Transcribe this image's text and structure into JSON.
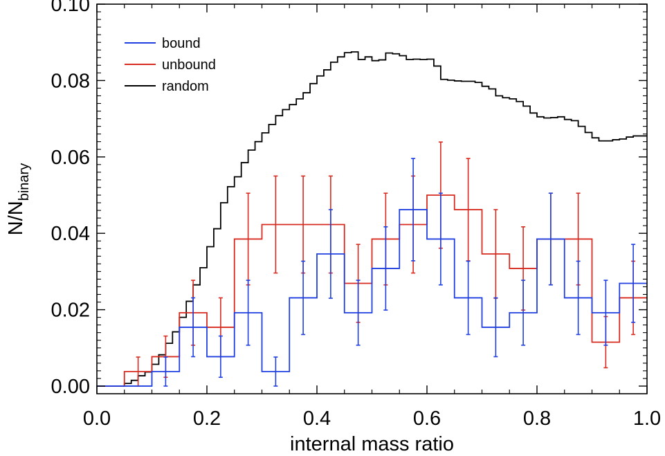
{
  "chart_data": {
    "type": "line",
    "style": "step-histogram-with-errorbars",
    "xlabel": "internal mass ratio",
    "ylabel": "N/N",
    "ylabel_subscript": "binary",
    "xlim": [
      0.0,
      1.0
    ],
    "ylim": [
      -0.002,
      0.1
    ],
    "xticks": [
      0.0,
      0.2,
      0.4,
      0.6,
      0.8,
      1.0
    ],
    "xtick_labels": [
      "0.0",
      "0.2",
      "0.4",
      "0.6",
      "0.8",
      "1.0"
    ],
    "yticks": [
      0.0,
      0.02,
      0.04,
      0.06,
      0.08,
      0.1
    ],
    "ytick_labels": [
      "0.00",
      "0.02",
      "0.04",
      "0.06",
      "0.08",
      "0.10"
    ],
    "legend": {
      "position": "top-left",
      "entries": [
        {
          "label": "bound",
          "color": "#1f3fe0"
        },
        {
          "label": "unbound",
          "color": "#d82a1e"
        },
        {
          "label": "random",
          "color": "#000000"
        }
      ]
    },
    "series": [
      {
        "name": "random",
        "color": "#000000",
        "bin_width": 0.0125,
        "bin_start": 0.0,
        "values": [
          0.0,
          0.0,
          0.0,
          0.0,
          0.0007,
          0.0015,
          0.0027,
          0.0037,
          0.0057,
          0.0082,
          0.0112,
          0.0142,
          0.018,
          0.0222,
          0.0265,
          0.031,
          0.0365,
          0.0412,
          0.048,
          0.0522,
          0.0548,
          0.0585,
          0.0618,
          0.064,
          0.0663,
          0.0685,
          0.0708,
          0.0724,
          0.0737,
          0.0752,
          0.0768,
          0.0792,
          0.0812,
          0.0828,
          0.0848,
          0.0862,
          0.0873,
          0.0875,
          0.0855,
          0.0862,
          0.0852,
          0.0854,
          0.0872,
          0.087,
          0.0865,
          0.0855,
          0.0856,
          0.0855,
          0.0856,
          0.0838,
          0.0803,
          0.0801,
          0.0799,
          0.0798,
          0.0798,
          0.0795,
          0.0785,
          0.0778,
          0.076,
          0.0755,
          0.0752,
          0.0745,
          0.0733,
          0.0715,
          0.0705,
          0.0702,
          0.0703,
          0.0705,
          0.0698,
          0.0695,
          0.068,
          0.0664,
          0.065,
          0.0642,
          0.0642,
          0.0645,
          0.0647,
          0.0652,
          0.0655,
          0.0655
        ]
      },
      {
        "name": "unbound",
        "color": "#d82a1e",
        "bin_width": 0.05,
        "bin_start": 0.0,
        "values": [
          0.0,
          0.0038,
          0.0077,
          0.0192,
          0.0154,
          0.0385,
          0.0423,
          0.0423,
          0.0423,
          0.0269,
          0.0385,
          0.0423,
          0.05,
          0.0462,
          0.0346,
          0.0308,
          0.0385,
          0.0385,
          0.0115,
          0.0231
        ],
        "errors": [
          0.0,
          0.0038,
          0.0054,
          0.0085,
          0.0077,
          0.012,
          0.0127,
          0.0127,
          0.0127,
          0.0102,
          0.012,
          0.0127,
          0.0139,
          0.0134,
          0.0116,
          0.0109,
          0.012,
          0.012,
          0.0067,
          0.0096
        ]
      },
      {
        "name": "bound",
        "color": "#1f3fe0",
        "bin_width": 0.05,
        "bin_start": 0.0,
        "values": [
          0.0,
          0.0,
          0.0038,
          0.0154,
          0.0077,
          0.0192,
          0.0038,
          0.0231,
          0.0346,
          0.0192,
          0.0308,
          0.0462,
          0.0385,
          0.0231,
          0.0154,
          0.0192,
          0.0385,
          0.0231,
          0.0192,
          0.0269
        ],
        "errors": [
          0.0,
          0.0,
          0.0038,
          0.0077,
          0.0054,
          0.0085,
          0.0038,
          0.0096,
          0.0116,
          0.0085,
          0.0109,
          0.0134,
          0.012,
          0.0096,
          0.0077,
          0.0085,
          0.012,
          0.0096,
          0.0085,
          0.0102
        ]
      }
    ]
  }
}
